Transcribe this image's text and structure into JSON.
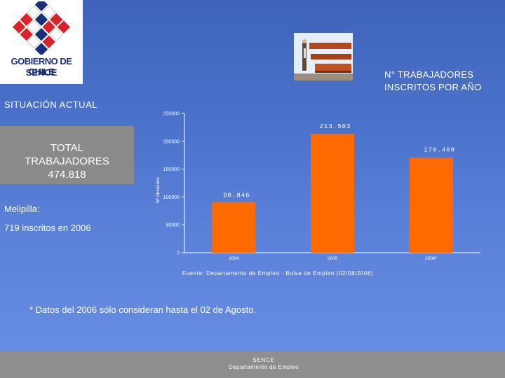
{
  "logo": {
    "line1": "GOBIERNO DE CHILE",
    "line2": "SENCE",
    "colors": {
      "blue": "#1a2f7a",
      "red": "#d8232a"
    }
  },
  "header": {
    "title_line1": "N° TRABAJADORES",
    "title_line2": "INSCRITOS POR AÑO"
  },
  "left_panel": {
    "situacion": "SITUACIÓN ACTUAL",
    "total_line1": "TOTAL",
    "total_line2": "TRABAJADORES",
    "total_line3": "474.818",
    "melipilla": "Melipilla:",
    "inscritos": "719 inscritos en 2006"
  },
  "chart_data": {
    "type": "bar",
    "categories": [
      "2004",
      "2005",
      "2006*"
    ],
    "values": [
      90846,
      213503,
      170469
    ],
    "data_labels": [
      "90.846",
      "213.503",
      "170.469"
    ],
    "ylabel": "Nº Absolutos",
    "ylim": [
      0,
      250000
    ],
    "yticks": [
      0,
      50000,
      100000,
      150000,
      200000,
      250000
    ],
    "bar_color": "#ff6a00",
    "grid": false
  },
  "source": "Fuente: Departamento de Empleo - Bolsa de Empleo (02/08/2006)",
  "note": "* Datos del 2006 sólo consideran hasta el 02 de Agosto.",
  "footer": {
    "line1": "SENCE",
    "line2": "Departamento de Empleo"
  }
}
